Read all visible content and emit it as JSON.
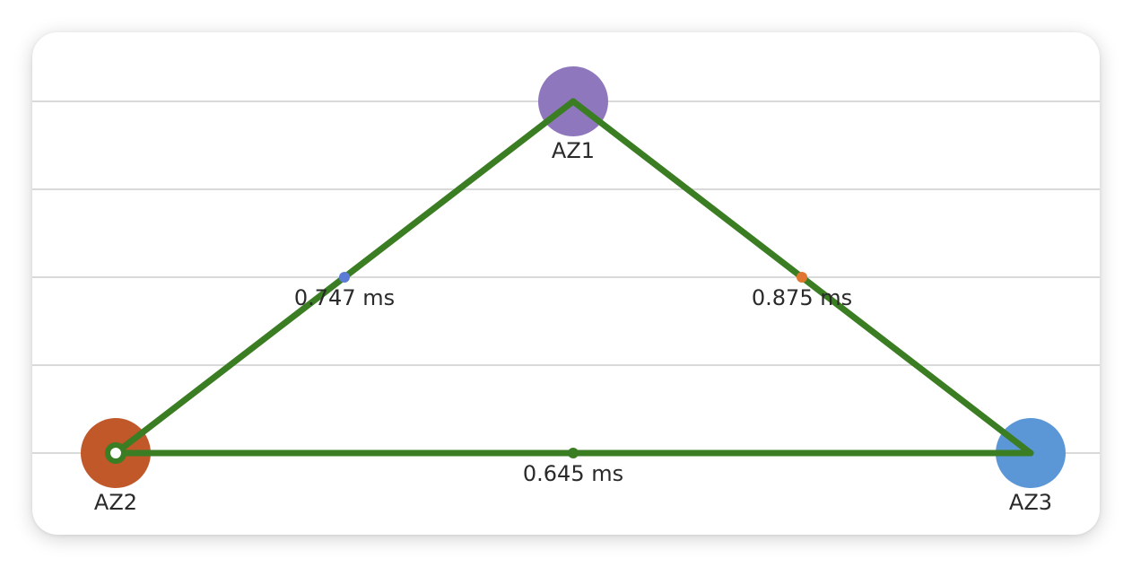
{
  "chart_data": {
    "type": "scatter",
    "title": "",
    "xlabel": "",
    "ylabel": "",
    "grid": true,
    "xlim": [
      0,
      2
    ],
    "ylim": [
      0,
      2
    ],
    "nodes": [
      {
        "name": "AZ1",
        "x": 1,
        "y": 2,
        "color": "#8e77bd"
      },
      {
        "name": "AZ2",
        "x": 0,
        "y": 0,
        "color": "#c0582a"
      },
      {
        "name": "AZ3",
        "x": 2,
        "y": 0,
        "color": "#5b97d6"
      }
    ],
    "links": [
      {
        "from": "AZ1",
        "to": "AZ2",
        "latency": "0.747 ms",
        "midpoint_color": "#5b7bd6"
      },
      {
        "from": "AZ1",
        "to": "AZ3",
        "latency": "0.875 ms",
        "midpoint_color": "#e0762f"
      },
      {
        "from": "AZ2",
        "to": "AZ3",
        "latency": "0.645 ms",
        "midpoint_color": "#3a7d22"
      }
    ],
    "line_color": "#3a7d22",
    "gridline_color": "#d9d9d9"
  }
}
